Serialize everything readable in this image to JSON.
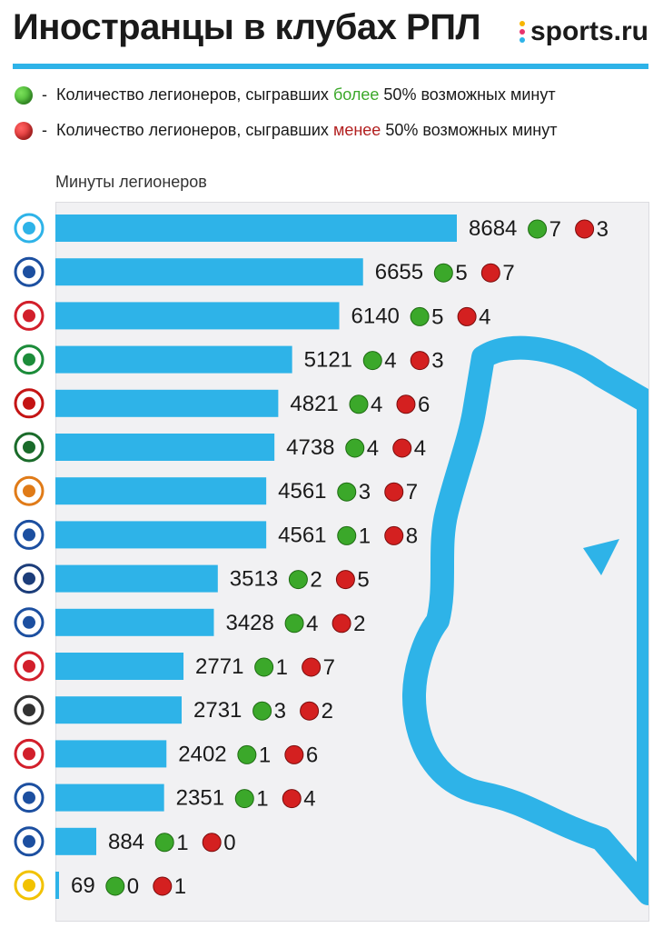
{
  "header": {
    "title": "Иностранцы в клубах РПЛ",
    "brand": "sports.ru"
  },
  "legend": {
    "prefix": "Количество легионеров, сыгравших",
    "green_word": "более",
    "red_word": "менее",
    "suffix": "50% возможных минут",
    "dash": "-"
  },
  "panel_label": "Минуты легионеров",
  "colors": {
    "bar": "#2eb3e8",
    "accent": "#2eb3e8",
    "green": "#3ba82a",
    "red": "#c41414",
    "panel": "#f1f1f3"
  },
  "chart_data": {
    "type": "bar",
    "orientation": "horizontal",
    "title": "Иностранцы в клубах РПЛ",
    "ylabel": "Минуты легионеров",
    "xlim": [
      0,
      8684
    ],
    "values": [
      8684,
      6655,
      6140,
      5121,
      4821,
      4738,
      4561,
      4561,
      3513,
      3428,
      2771,
      2731,
      2402,
      2351,
      884,
      69
    ],
    "more_than_half": [
      7,
      5,
      5,
      4,
      4,
      4,
      3,
      1,
      2,
      4,
      1,
      3,
      1,
      1,
      1,
      0
    ],
    "less_than_half": [
      3,
      7,
      4,
      3,
      6,
      4,
      7,
      8,
      5,
      2,
      7,
      2,
      6,
      4,
      0,
      1
    ],
    "club_logos": [
      "zenit-logo",
      "orenburg-logo",
      "cska-logo",
      "akhmat-logo",
      "lokomotiv-logo",
      "krasnodar-logo",
      "ural-logo",
      "dynamo-logo",
      "sochi-logo",
      "nizhny-novgorod-logo",
      "spartak-logo",
      "khimki-logo",
      "torpedo-logo",
      "krylia-sovetov-logo",
      "fakel-logo",
      "rostov-logo"
    ]
  }
}
